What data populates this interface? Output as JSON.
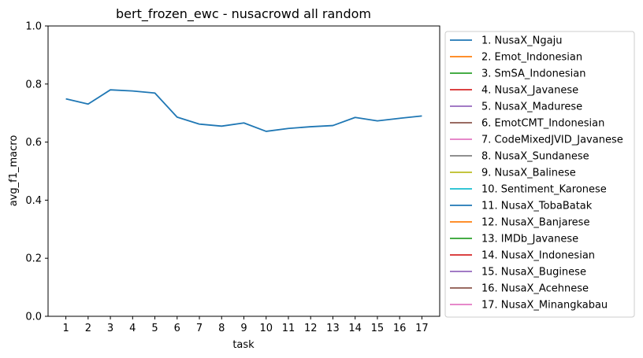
{
  "chart_data": {
    "type": "line",
    "title": "bert_frozen_ewc - nusacrowd all random",
    "xlabel": "task",
    "ylabel": "avg_f1_macro",
    "x": [
      1,
      2,
      3,
      4,
      5,
      6,
      7,
      8,
      9,
      10,
      11,
      12,
      13,
      14,
      15,
      16,
      17
    ],
    "xticks": [
      "1",
      "2",
      "3",
      "4",
      "5",
      "6",
      "7",
      "8",
      "9",
      "10",
      "11",
      "12",
      "13",
      "14",
      "15",
      "16",
      "17"
    ],
    "ylim": [
      0,
      1
    ],
    "yticks": [
      "0.0",
      "0.2",
      "0.4",
      "0.6",
      "0.8",
      "1.0"
    ],
    "grid": false,
    "legend_position": "outside-right",
    "series": [
      {
        "name": "1. NusaX_Ngaju",
        "color": "#1f77b4",
        "values": [
          0.749,
          0.731,
          0.78,
          0.776,
          0.769,
          0.686,
          0.662,
          0.655,
          0.666,
          0.637,
          0.647,
          0.653,
          0.657,
          0.685,
          0.673,
          0.682,
          0.69
        ]
      }
    ],
    "legend": [
      {
        "label": "1. NusaX_Ngaju",
        "color": "#1f77b4"
      },
      {
        "label": "2. Emot_Indonesian",
        "color": "#ff7f0e"
      },
      {
        "label": "3. SmSA_Indonesian",
        "color": "#2ca02c"
      },
      {
        "label": "4. NusaX_Javanese",
        "color": "#d62728"
      },
      {
        "label": "5. NusaX_Madurese",
        "color": "#9467bd"
      },
      {
        "label": "6. EmotCMT_Indonesian",
        "color": "#8c564b"
      },
      {
        "label": "7. CodeMixedJVID_Javanese",
        "color": "#e377c2"
      },
      {
        "label": "8. NusaX_Sundanese",
        "color": "#7f7f7f"
      },
      {
        "label": "9. NusaX_Balinese",
        "color": "#bcbd22"
      },
      {
        "label": "10. Sentiment_Karonese",
        "color": "#17becf"
      },
      {
        "label": "11. NusaX_TobaBatak",
        "color": "#1f77b4"
      },
      {
        "label": "12. NusaX_Banjarese",
        "color": "#ff7f0e"
      },
      {
        "label": "13. IMDb_Javanese",
        "color": "#2ca02c"
      },
      {
        "label": "14. NusaX_Indonesian",
        "color": "#d62728"
      },
      {
        "label": "15. NusaX_Buginese",
        "color": "#9467bd"
      },
      {
        "label": "16. NusaX_Acehnese",
        "color": "#8c564b"
      },
      {
        "label": "17. NusaX_Minangkabau",
        "color": "#e377c2"
      }
    ]
  }
}
